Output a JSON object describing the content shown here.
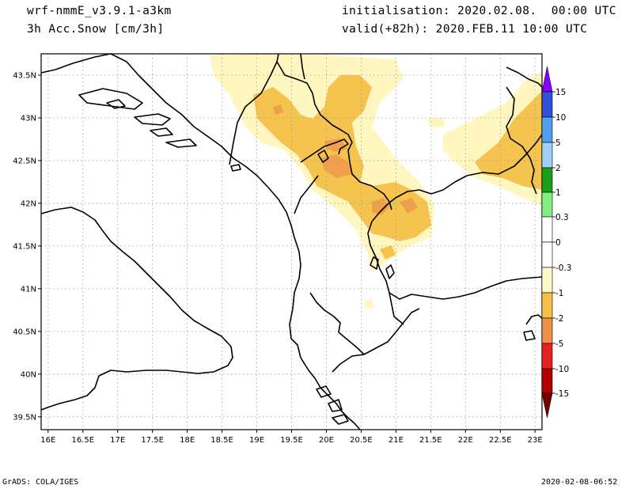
{
  "header": {
    "model": "wrf-nmmE_v3.9.1-a3km",
    "field": "3h Acc.Snow [cm/3h]",
    "init": "initialisation: 2020.02.08.  00:00 UTC",
    "valid": "valid(+82h): 2020.FEB.11 10:00 UTC"
  },
  "footer": {
    "software": "GrADS: COLA/IGES",
    "timestamp": "2020-02-08-06:52"
  },
  "map": {
    "lon_ticks": [
      "16E",
      "16.5E",
      "17E",
      "17.5E",
      "18E",
      "18.5E",
      "19E",
      "19.5E",
      "20E",
      "20.5E",
      "21E",
      "21.5E",
      "22E",
      "22.5E",
      "23E"
    ],
    "lat_ticks": [
      "43.5N",
      "43N",
      "42.5N",
      "42N",
      "41.5N",
      "41N",
      "40.5N",
      "40N",
      "39.5N"
    ],
    "lon_range": [
      15.9,
      23.1
    ],
    "lat_range": [
      39.35,
      43.75
    ],
    "grid": true
  },
  "colorbar": {
    "labels": [
      "15",
      "10",
      "5",
      "2",
      "1",
      "0.3",
      "0",
      "-0.3",
      "-1",
      "-2",
      "-5",
      "-10",
      "-15"
    ],
    "colors": [
      "#8b00ff",
      "#3050d8",
      "#50a0f0",
      "#a0d0f8",
      "#18a018",
      "#80f080",
      "#ffffff",
      "#ffffff",
      "#fff8c8",
      "#f4c048",
      "#f09048",
      "#e82020",
      "#b00000",
      "#7a0000"
    ]
  },
  "snow_colors": {
    "light": "#fff6c0",
    "moderate": "#f5c44e",
    "heavy": "#f0a04c"
  }
}
